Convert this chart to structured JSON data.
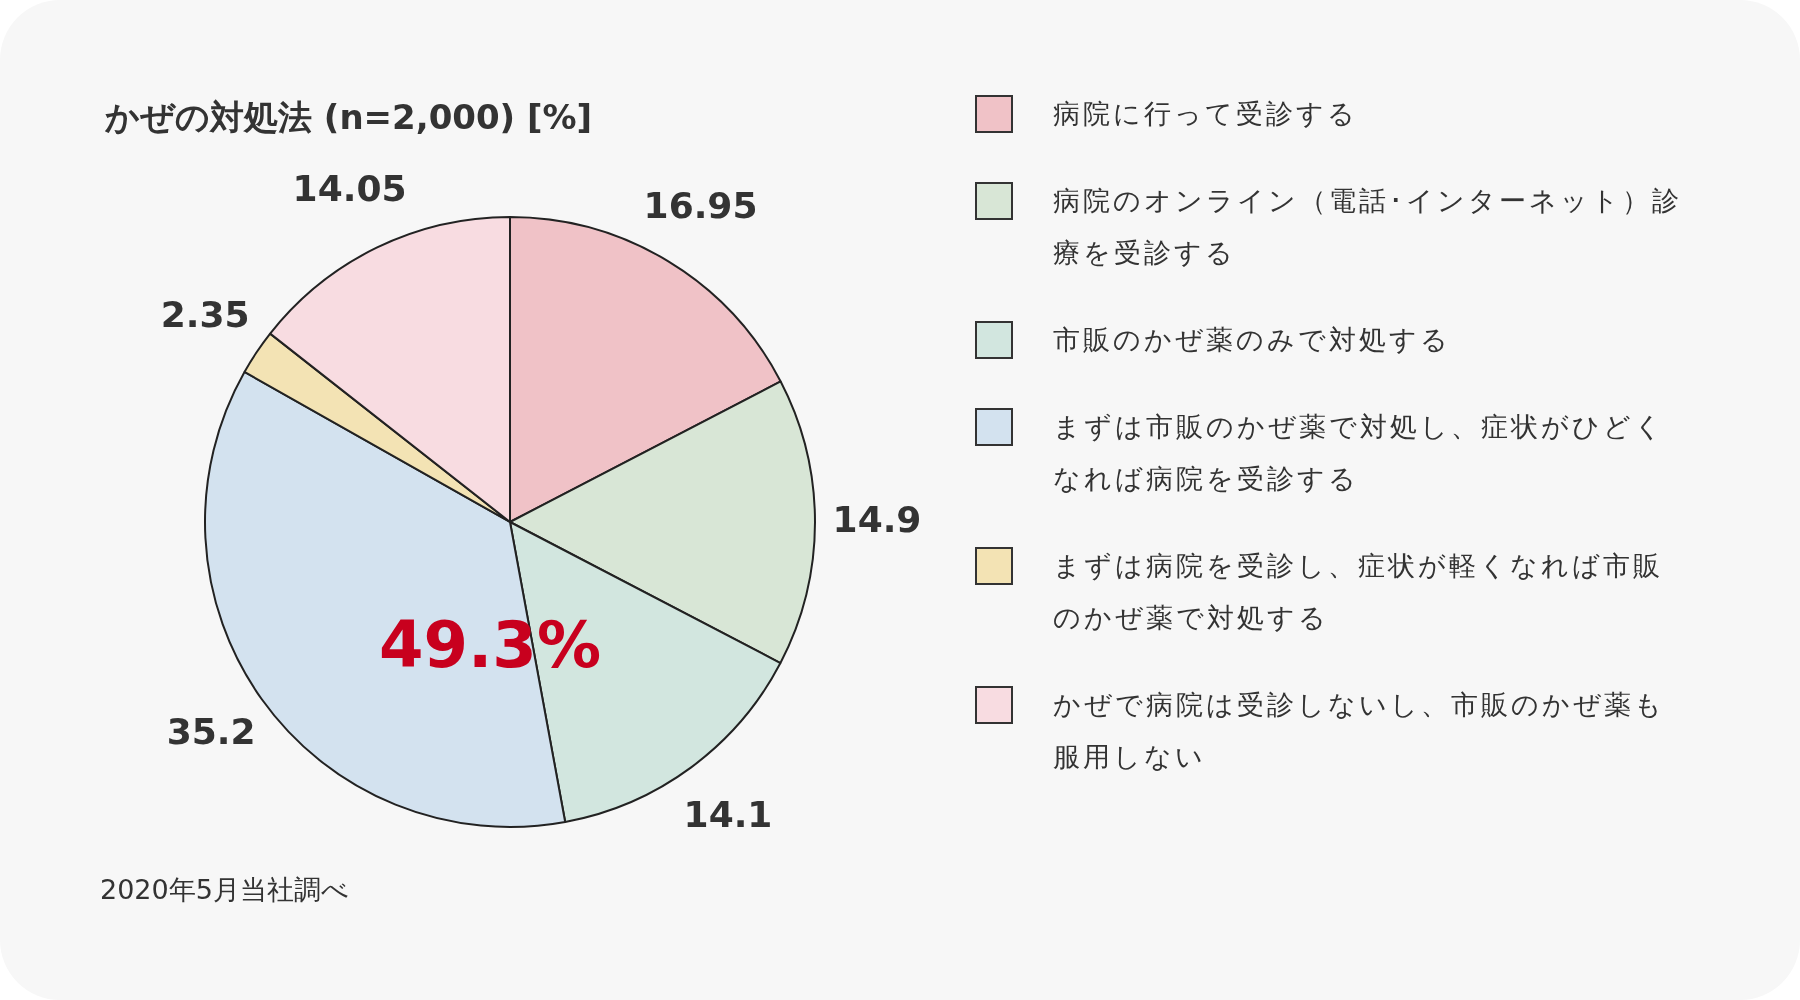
{
  "chart_data": {
    "type": "pie",
    "title": "かぜの対処法 (n=2,000) [%]",
    "categories": [
      "病院に行って受診する",
      "病院のオンライン（電話･インターネット）診療を受診する",
      "市販のかぜ薬のみで対処する",
      "まずは市販のかぜ薬で対処し、症状がひどくなれば病院を受診する",
      "まずは病院を受診し、症状が軽くなれば市販のかぜ薬で対処する",
      "かぜで病院は受診しないし、市販のかぜ薬も服用しない"
    ],
    "values": [
      16.95,
      14.9,
      14.1,
      35.2,
      2.35,
      14.05
    ],
    "colors": [
      "#f0c2c7",
      "#d8e6d6",
      "#d2e6df",
      "#d3e2ef",
      "#f3e3b4",
      "#f8dce1"
    ],
    "data_labels": true,
    "legend": "right",
    "annotations": [
      "49.3%",
      "2020年5月当社調べ"
    ]
  }
}
